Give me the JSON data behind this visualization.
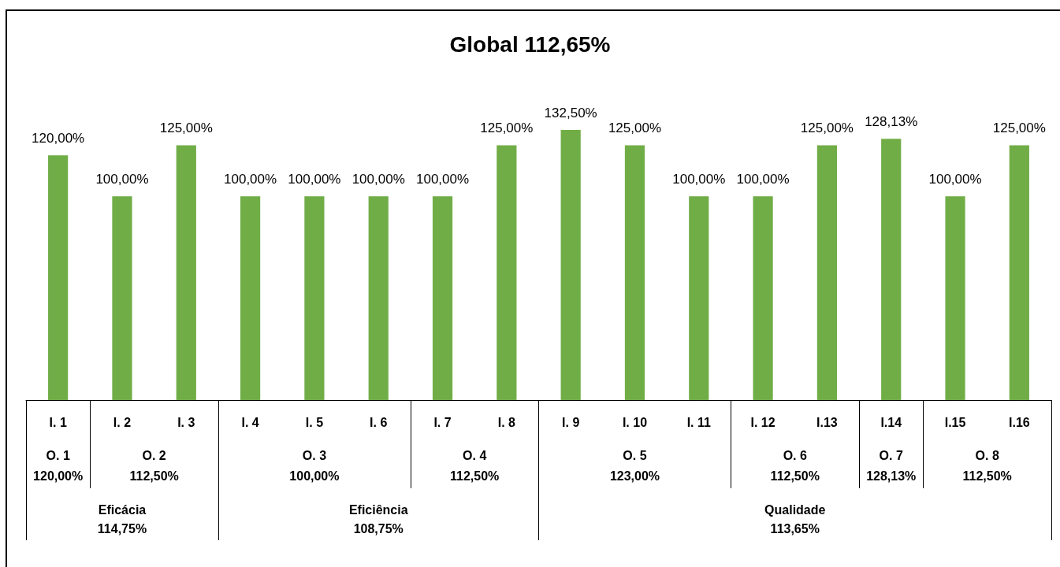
{
  "chart_data": {
    "type": "bar",
    "title": "Global 112,65%",
    "categories": [
      "I. 1",
      "I. 2",
      "I. 3",
      "I. 4",
      "I. 5",
      "I. 6",
      "I. 7",
      "I. 8",
      "I. 9",
      "I. 10",
      "I. 11",
      "I. 12",
      "I.13",
      "I.14",
      "I.15",
      "I.16"
    ],
    "values": [
      120,
      100,
      125,
      100,
      100,
      100,
      100,
      125,
      132.5,
      125,
      100,
      100,
      125,
      128.13,
      100,
      125
    ],
    "value_labels": [
      "120,00%",
      "100,00%",
      "125,00%",
      "100,00%",
      "100,00%",
      "100,00%",
      "100,00%",
      "125,00%",
      "132,50%",
      "125,00%",
      "100,00%",
      "100,00%",
      "125,00%",
      "128,13%",
      "100,00%",
      "125,00%"
    ],
    "color": "#70ad47",
    "tick_labels": "x",
    "annotations": [
      "O. 1\n120,00%",
      "O. 2\n112,50%",
      "O. 3\n100,00%",
      "O. 4\n112,50%",
      "O. 5\n123,00%",
      "O. 6\n112,50%",
      "O. 7\n128,13%",
      "O. 8\n112,50%",
      "Eficácia\n114,75%",
      "Eficiência\n108,75%",
      "Qualidade\n113,65%"
    ]
  }
}
